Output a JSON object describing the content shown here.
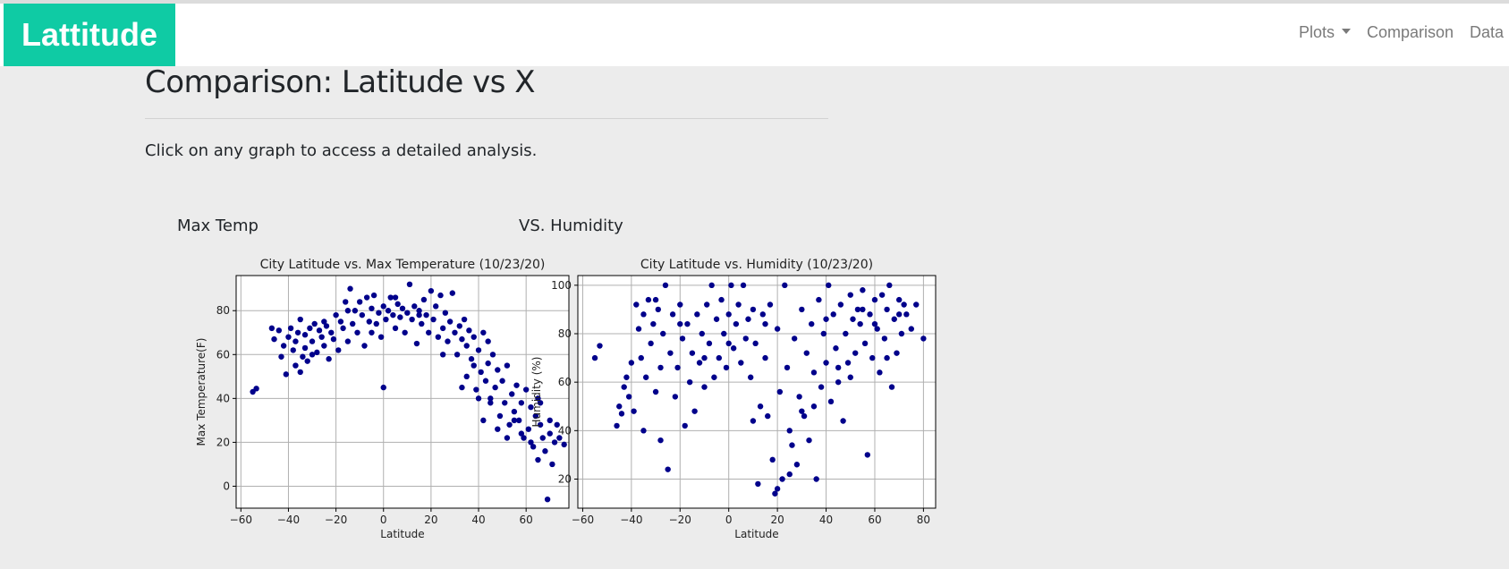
{
  "navbar": {
    "brand": "Lattitude",
    "links": [
      {
        "label": "Plots"
      },
      {
        "label": "Comparison"
      },
      {
        "label": "Data"
      }
    ]
  },
  "page": {
    "title": "Comparison: Latitude vs X",
    "lead": "Click on any graph to access a detailed analysis.",
    "captions": [
      "Max Temp",
      "VS. Humidity"
    ]
  },
  "colors": {
    "brand": "#0fcba4",
    "points": "#00008b",
    "grid": "#b0b0b0"
  },
  "chart_data": [
    {
      "type": "scatter",
      "title": "City Latitude vs. Max Temperature (10/23/20)",
      "xlabel": "Latitude",
      "ylabel": "Max Temperature(F)",
      "xlim": [
        -62,
        78
      ],
      "ylim": [
        -10,
        96
      ],
      "xticks": [
        -60,
        -40,
        -20,
        0,
        20,
        40,
        60
      ],
      "yticks": [
        0,
        20,
        40,
        60,
        80
      ],
      "grid": true,
      "points": [
        [
          -55,
          43
        ],
        [
          -53.5,
          44.5
        ],
        [
          -47,
          72
        ],
        [
          -46,
          67
        ],
        [
          -44,
          71
        ],
        [
          -43,
          59
        ],
        [
          -42,
          64
        ],
        [
          -41,
          51
        ],
        [
          -40,
          68
        ],
        [
          -39,
          72
        ],
        [
          -38,
          62
        ],
        [
          -37,
          55
        ],
        [
          -37,
          66
        ],
        [
          -36,
          70
        ],
        [
          -35,
          52
        ],
        [
          -35,
          76
        ],
        [
          -34,
          59
        ],
        [
          -33,
          63
        ],
        [
          -33,
          69
        ],
        [
          -32,
          57
        ],
        [
          -31,
          72
        ],
        [
          -30,
          66
        ],
        [
          -29,
          74
        ],
        [
          -28,
          61
        ],
        [
          -27,
          71
        ],
        [
          -26,
          68
        ],
        [
          -25,
          64
        ],
        [
          -24,
          73
        ],
        [
          -23,
          58
        ],
        [
          -22,
          70
        ],
        [
          -21,
          67
        ],
        [
          -20,
          78
        ],
        [
          -19,
          62
        ],
        [
          -18,
          75
        ],
        [
          -17,
          72
        ],
        [
          -16,
          84
        ],
        [
          -15,
          66
        ],
        [
          -14,
          90
        ],
        [
          -13,
          74
        ],
        [
          -12,
          80
        ],
        [
          -11,
          70
        ],
        [
          -10,
          84
        ],
        [
          -9,
          78
        ],
        [
          -8,
          64
        ],
        [
          -7,
          86
        ],
        [
          -6,
          75
        ],
        [
          -5,
          81
        ],
        [
          -4,
          87
        ],
        [
          -3,
          74
        ],
        [
          -2,
          79
        ],
        [
          -1,
          68
        ],
        [
          0,
          45
        ],
        [
          0,
          82
        ],
        [
          1,
          76
        ],
        [
          2,
          80
        ],
        [
          3,
          86
        ],
        [
          4,
          78
        ],
        [
          5,
          72
        ],
        [
          6,
          83
        ],
        [
          7,
          77
        ],
        [
          8,
          81
        ],
        [
          9,
          70
        ],
        [
          10,
          79
        ],
        [
          11,
          92
        ],
        [
          12,
          76
        ],
        [
          13,
          82
        ],
        [
          14,
          65
        ],
        [
          15,
          80
        ],
        [
          16,
          74
        ],
        [
          17,
          85
        ],
        [
          18,
          78
        ],
        [
          19,
          70
        ],
        [
          20,
          89
        ],
        [
          21,
          76
        ],
        [
          22,
          82
        ],
        [
          23,
          68
        ],
        [
          24,
          87
        ],
        [
          25,
          72
        ],
        [
          26,
          79
        ],
        [
          27,
          66
        ],
        [
          28,
          75
        ],
        [
          29,
          88
        ],
        [
          30,
          70
        ],
        [
          31,
          60
        ],
        [
          32,
          73
        ],
        [
          33,
          67
        ],
        [
          34,
          76
        ],
        [
          35,
          64
        ],
        [
          36,
          71
        ],
        [
          37,
          58
        ],
        [
          38,
          68
        ],
        [
          39,
          44
        ],
        [
          40,
          62
        ],
        [
          41,
          52
        ],
        [
          42,
          70
        ],
        [
          43,
          48
        ],
        [
          44,
          56
        ],
        [
          45,
          40
        ],
        [
          46,
          60
        ],
        [
          47,
          45
        ],
        [
          48,
          53
        ],
        [
          49,
          32
        ],
        [
          50,
          48
        ],
        [
          51,
          38
        ],
        [
          52,
          55
        ],
        [
          53,
          28
        ],
        [
          54,
          42
        ],
        [
          55,
          34
        ],
        [
          56,
          46
        ],
        [
          57,
          30
        ],
        [
          58,
          38
        ],
        [
          59,
          22
        ],
        [
          60,
          44
        ],
        [
          61,
          26
        ],
        [
          62,
          36
        ],
        [
          63,
          18
        ],
        [
          64,
          32
        ],
        [
          65,
          12
        ],
        [
          66,
          28
        ],
        [
          67,
          22
        ],
        [
          68,
          16
        ],
        [
          69,
          -6
        ],
        [
          70,
          24
        ],
        [
          71,
          10
        ],
        [
          72,
          20
        ],
        [
          73,
          28
        ],
        [
          74,
          22
        ],
        [
          76,
          19
        ],
        [
          -30,
          60
        ],
        [
          -25,
          75
        ],
        [
          -15,
          80
        ],
        [
          -5,
          70
        ],
        [
          5,
          86
        ],
        [
          15,
          78
        ],
        [
          25,
          60
        ],
        [
          35,
          50
        ],
        [
          45,
          38
        ],
        [
          55,
          30
        ],
        [
          65,
          40
        ],
        [
          40,
          40
        ],
        [
          42,
          30
        ],
        [
          48,
          26
        ],
        [
          52,
          22
        ],
        [
          58,
          24
        ],
        [
          62,
          20
        ],
        [
          66,
          38
        ],
        [
          70,
          30
        ],
        [
          44,
          66
        ],
        [
          38,
          55
        ],
        [
          33,
          45
        ]
      ]
    },
    {
      "type": "scatter",
      "title": "City Latitude vs. Humidity (10/23/20)",
      "xlabel": "Latitude",
      "ylabel": "Humidity (%)",
      "xlim": [
        -62,
        85
      ],
      "ylim": [
        8,
        104
      ],
      "xticks": [
        -60,
        -40,
        -20,
        0,
        20,
        40,
        60,
        80
      ],
      "yticks": [
        20,
        40,
        60,
        80,
        100
      ],
      "grid": true,
      "points": [
        [
          -55,
          70
        ],
        [
          -53,
          75
        ],
        [
          -46,
          42
        ],
        [
          -45,
          50
        ],
        [
          -44,
          47
        ],
        [
          -43,
          58
        ],
        [
          -42,
          62
        ],
        [
          -41,
          54
        ],
        [
          -40,
          68
        ],
        [
          -39,
          48
        ],
        [
          -38,
          92
        ],
        [
          -37,
          82
        ],
        [
          -36,
          70
        ],
        [
          -35,
          88
        ],
        [
          -34,
          62
        ],
        [
          -33,
          94
        ],
        [
          -32,
          76
        ],
        [
          -31,
          84
        ],
        [
          -30,
          56
        ],
        [
          -29,
          90
        ],
        [
          -28,
          36
        ],
        [
          -27,
          80
        ],
        [
          -26,
          100
        ],
        [
          -25,
          24
        ],
        [
          -24,
          72
        ],
        [
          -23,
          88
        ],
        [
          -22,
          54
        ],
        [
          -21,
          66
        ],
        [
          -20,
          92
        ],
        [
          -19,
          78
        ],
        [
          -18,
          42
        ],
        [
          -17,
          84
        ],
        [
          -16,
          60
        ],
        [
          -15,
          72
        ],
        [
          -14,
          48
        ],
        [
          -13,
          88
        ],
        [
          -12,
          68
        ],
        [
          -11,
          80
        ],
        [
          -10,
          58
        ],
        [
          -9,
          92
        ],
        [
          -8,
          76
        ],
        [
          -7,
          100
        ],
        [
          -6,
          62
        ],
        [
          -5,
          86
        ],
        [
          -4,
          70
        ],
        [
          -3,
          94
        ],
        [
          -2,
          80
        ],
        [
          -1,
          66
        ],
        [
          0,
          88
        ],
        [
          1,
          100
        ],
        [
          2,
          74
        ],
        [
          3,
          84
        ],
        [
          4,
          92
        ],
        [
          5,
          68
        ],
        [
          6,
          100
        ],
        [
          7,
          78
        ],
        [
          8,
          86
        ],
        [
          9,
          62
        ],
        [
          10,
          44
        ],
        [
          11,
          76
        ],
        [
          12,
          18
        ],
        [
          13,
          50
        ],
        [
          14,
          88
        ],
        [
          15,
          70
        ],
        [
          16,
          46
        ],
        [
          17,
          92
        ],
        [
          18,
          28
        ],
        [
          19,
          14
        ],
        [
          20,
          82
        ],
        [
          21,
          56
        ],
        [
          22,
          20
        ],
        [
          23,
          100
        ],
        [
          24,
          66
        ],
        [
          25,
          40
        ],
        [
          26,
          34
        ],
        [
          27,
          78
        ],
        [
          28,
          26
        ],
        [
          29,
          54
        ],
        [
          30,
          90
        ],
        [
          31,
          46
        ],
        [
          32,
          72
        ],
        [
          33,
          36
        ],
        [
          34,
          84
        ],
        [
          35,
          64
        ],
        [
          36,
          20
        ],
        [
          37,
          94
        ],
        [
          38,
          58
        ],
        [
          39,
          80
        ],
        [
          40,
          68
        ],
        [
          41,
          100
        ],
        [
          42,
          52
        ],
        [
          43,
          88
        ],
        [
          44,
          74
        ],
        [
          45,
          60
        ],
        [
          46,
          92
        ],
        [
          47,
          44
        ],
        [
          48,
          80
        ],
        [
          49,
          68
        ],
        [
          50,
          96
        ],
        [
          51,
          86
        ],
        [
          52,
          72
        ],
        [
          53,
          90
        ],
        [
          54,
          84
        ],
        [
          55,
          98
        ],
        [
          56,
          76
        ],
        [
          57,
          30
        ],
        [
          58,
          88
        ],
        [
          59,
          70
        ],
        [
          60,
          94
        ],
        [
          61,
          82
        ],
        [
          62,
          64
        ],
        [
          63,
          96
        ],
        [
          64,
          78
        ],
        [
          65,
          90
        ],
        [
          66,
          100
        ],
        [
          67,
          58
        ],
        [
          68,
          86
        ],
        [
          69,
          72
        ],
        [
          70,
          94
        ],
        [
          71,
          80
        ],
        [
          72,
          92
        ],
        [
          73,
          88
        ],
        [
          77,
          92
        ],
        [
          80,
          78
        ],
        [
          -30,
          94
        ],
        [
          -20,
          84
        ],
        [
          -10,
          70
        ],
        [
          0,
          76
        ],
        [
          10,
          90
        ],
        [
          20,
          16
        ],
        [
          30,
          48
        ],
        [
          40,
          86
        ],
        [
          50,
          62
        ],
        [
          60,
          84
        ],
        [
          70,
          88
        ],
        [
          -35,
          40
        ],
        [
          -28,
          66
        ],
        [
          15,
          84
        ],
        [
          25,
          22
        ],
        [
          35,
          50
        ],
        [
          45,
          66
        ],
        [
          55,
          90
        ],
        [
          65,
          70
        ],
        [
          75,
          82
        ]
      ]
    }
  ]
}
